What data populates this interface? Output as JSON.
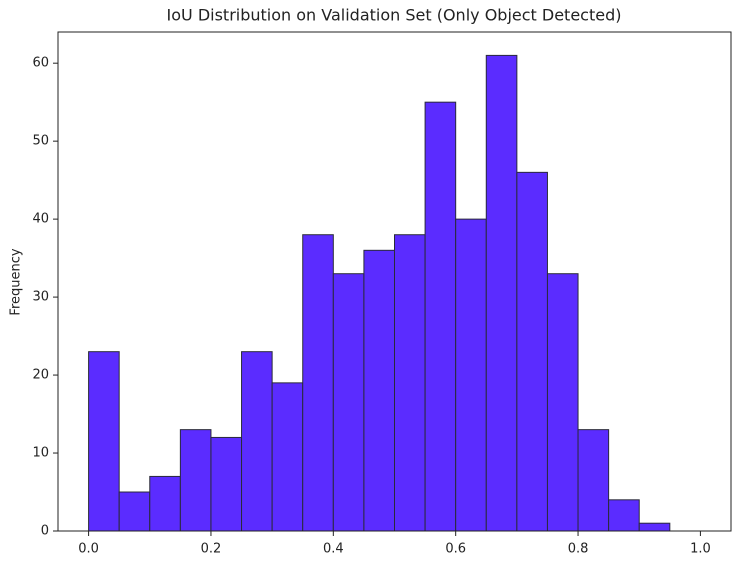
{
  "chart_data": {
    "type": "histogram",
    "title": "IoU Distribution on Validation Set (Only Object Detected)",
    "y_label": "Frequency",
    "bins": [
      0,
      0.05,
      0.1,
      0.15,
      0.2,
      0.25,
      0.3,
      0.35,
      0.4,
      0.45,
      0.5,
      0.55,
      0.6,
      0.65,
      0.7,
      0.75,
      0.8,
      0.85,
      0.9,
      0.95,
      1.0
    ],
    "values": [
      23,
      5,
      7,
      13,
      12,
      23,
      19,
      38,
      33,
      36,
      38,
      55,
      40,
      61,
      46,
      33,
      13,
      4,
      1,
      0
    ],
    "color": "#5b2cff",
    "edgecolor": "#2a2a3a",
    "xlim": [
      -0.05,
      1.05
    ],
    "xticks": [
      {
        "value": 0,
        "label": "0.0"
      },
      0.2,
      0.4,
      0.6,
      0.8,
      {
        "value": 1,
        "label": "1.0"
      }
    ],
    "ylim": [
      0,
      64
    ],
    "yticks": [
      0,
      10,
      20,
      30,
      40,
      50,
      60
    ]
  }
}
